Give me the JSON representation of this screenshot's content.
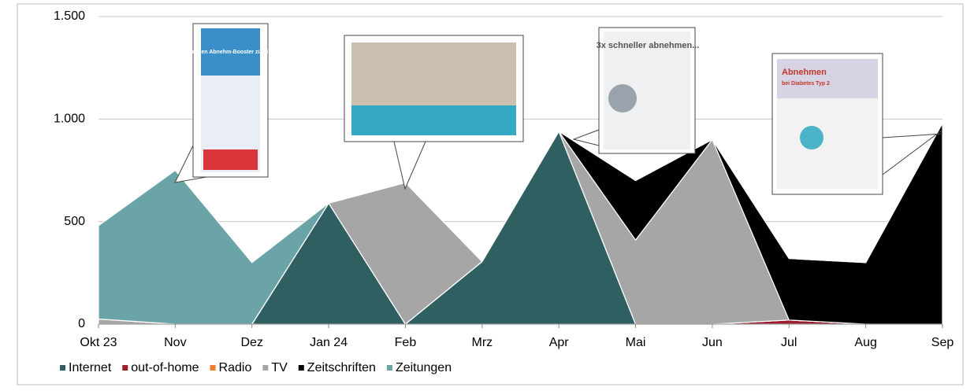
{
  "chart_data": {
    "type": "stacked-area",
    "categories": [
      "Okt 23",
      "Nov",
      "Dez",
      "Jan 24",
      "Feb",
      "Mrz",
      "Apr",
      "Mai",
      "Jun",
      "Jul",
      "Aug",
      "Sep"
    ],
    "series": [
      {
        "name": "Internet",
        "color": "#2f5f61",
        "values": [
          0,
          0,
          0,
          590,
          0,
          305,
          940,
          0,
          0,
          0,
          0,
          0
        ]
      },
      {
        "name": "out-of-home",
        "color": "#9b1c2a",
        "values": [
          0,
          0,
          0,
          0,
          0,
          0,
          0,
          0,
          0,
          20,
          0,
          0
        ]
      },
      {
        "name": "Radio",
        "color": "#f07f2a",
        "values": [
          0,
          0,
          0,
          0,
          0,
          0,
          0,
          0,
          0,
          0,
          0,
          0
        ]
      },
      {
        "name": "TV",
        "color": "#a6a6a6",
        "values": [
          25,
          0,
          0,
          0,
          690,
          0,
          0,
          410,
          900,
          0,
          0,
          0
        ]
      },
      {
        "name": "Zeitschriften",
        "color": "#000000",
        "values": [
          0,
          0,
          0,
          0,
          0,
          0,
          0,
          290,
          0,
          300,
          300,
          980
        ]
      },
      {
        "name": "Zeitungen",
        "color": "#6aa4a6",
        "values": [
          455,
          750,
          300,
          0,
          0,
          0,
          0,
          0,
          0,
          0,
          0,
          0
        ]
      }
    ],
    "ylim": [
      0,
      1500
    ],
    "yticks": [
      0,
      500,
      {
        "value": 1000,
        "label": "1.000"
      },
      {
        "value": 1500,
        "label": "1.500"
      }
    ],
    "grid": true,
    "legend": "bottom",
    "annotations": [
      "Jetzt den Abnehm-Booster zünden!",
      "3x schneller abnehmen...",
      "Abnehmen",
      "bei Diabetes Typ 2"
    ]
  }
}
